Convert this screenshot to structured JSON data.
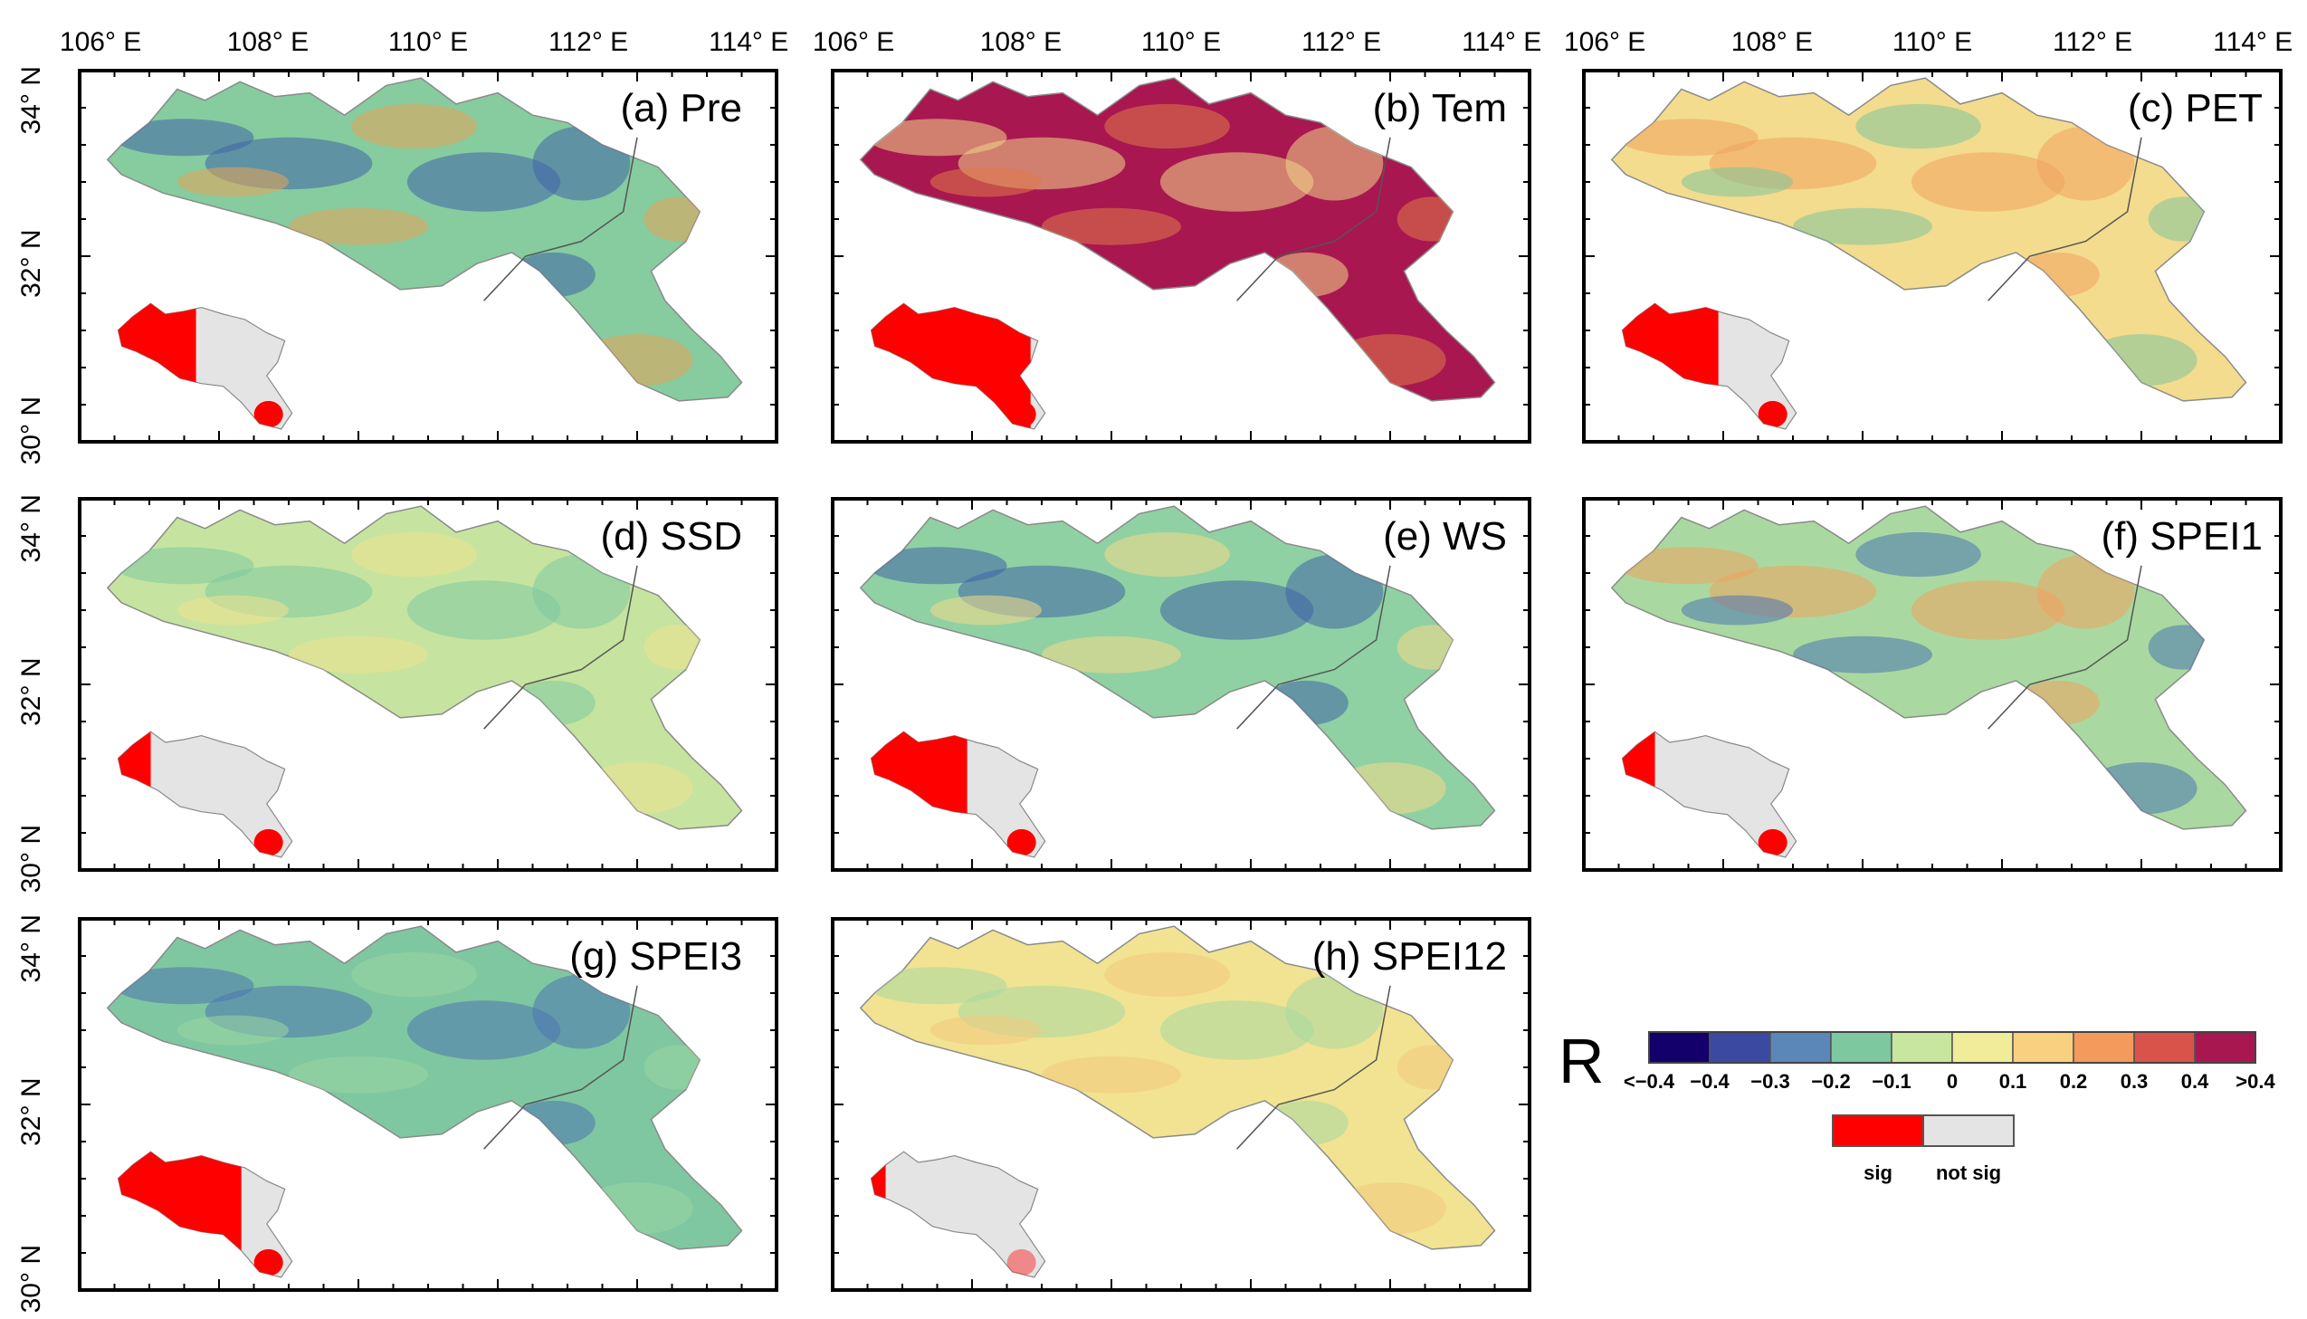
{
  "figure": {
    "lon_ticks": [
      "106° E",
      "108° E",
      "110° E",
      "112° E",
      "114° E"
    ],
    "lat_ticks": [
      "30° N",
      "32° N",
      "34° N"
    ],
    "panels": [
      {
        "id": "a",
        "title": "(a) Pre",
        "base_color": "#86cc9f",
        "patch_color": "#3f64a8",
        "patch2_color": "#e8a356",
        "inset_sig_share": 0.45
      },
      {
        "id": "b",
        "title": "(b) Tem",
        "base_color": "#a8174f",
        "patch_color": "#f2d58a",
        "patch2_color": "#e07a4a",
        "inset_sig_share": 0.9
      },
      {
        "id": "c",
        "title": "(c) PET",
        "base_color": "#f3dc8e",
        "patch_color": "#f0a35e",
        "patch2_color": "#7dc59d",
        "inset_sig_share": 0.55
      },
      {
        "id": "d",
        "title": "(d) SSD",
        "base_color": "#c6e49f",
        "patch_color": "#7ec8a0",
        "patch2_color": "#f0e28e",
        "inset_sig_share": 0.2
      },
      {
        "id": "e",
        "title": "(e) WS",
        "base_color": "#8fd1a3",
        "patch_color": "#3f64a8",
        "patch2_color": "#f5d98a",
        "inset_sig_share": 0.55
      },
      {
        "id": "f",
        "title": "(f) SPEI1",
        "base_color": "#a9d9a0",
        "patch_color": "#f0a35e",
        "patch2_color": "#4d74b0",
        "inset_sig_share": 0.2
      },
      {
        "id": "g",
        "title": "(g) SPEI3",
        "base_color": "#7fc7a0",
        "patch_color": "#4d74b0",
        "patch2_color": "#9bd6a2",
        "inset_sig_share": 0.7
      },
      {
        "id": "h",
        "title": "(h) SPEI12",
        "base_color": "#f1e392",
        "patch_color": "#a6d9a0",
        "patch2_color": "#f3c97d",
        "inset_sig_share": 0.1
      }
    ]
  },
  "legend": {
    "symbol": "R",
    "colors": [
      "#14006b",
      "#3b4aa0",
      "#5b86b8",
      "#7ec8a0",
      "#c8e6a0",
      "#f0ec9a",
      "#f8d080",
      "#f39a5c",
      "#d9534a",
      "#a8174f"
    ],
    "labels": [
      "<−0.4",
      "−0.4",
      "−0.3",
      "−0.2",
      "−0.1",
      "0",
      "0.1",
      "0.2",
      "0.3",
      "0.4",
      ">0.4"
    ],
    "sig": {
      "sig_label": "sig",
      "not_sig_label": "not sig",
      "sig_color": "#ff0000",
      "not_sig_color": "#e4e4e4"
    }
  }
}
